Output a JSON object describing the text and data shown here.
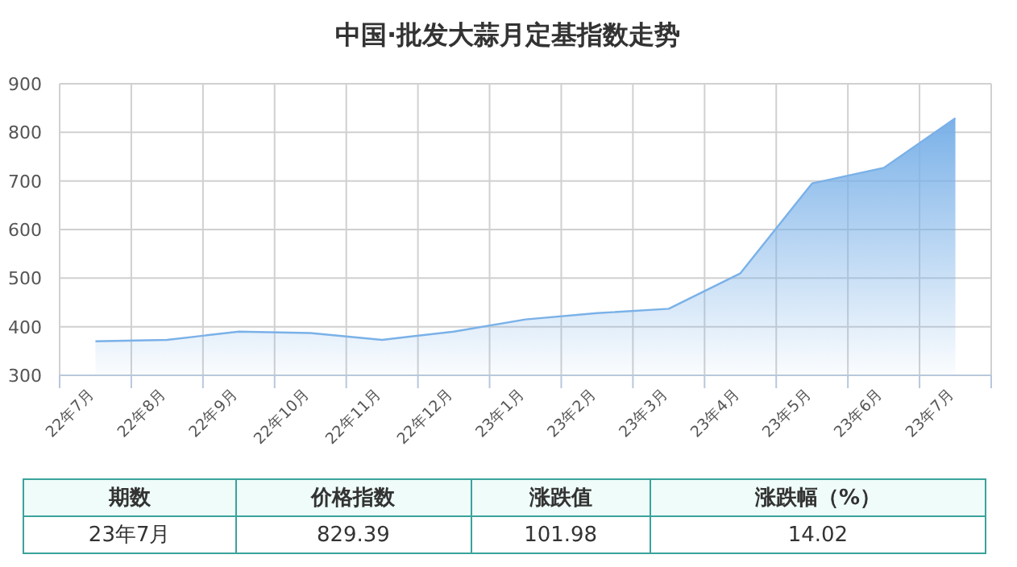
{
  "chart_data": [
    {
      "type": "area",
      "title": "中国·批发大蒜月定基指数走势",
      "categories": [
        "22年7月",
        "22年8月",
        "22年9月",
        "22年10月",
        "22年11月",
        "22年12月",
        "23年1月",
        "23年2月",
        "23年3月",
        "23年4月",
        "23年5月",
        "23年6月",
        "23年7月"
      ],
      "series": [
        {
          "color": "#7ab1e8",
          "values": [
            370,
            373,
            390,
            387,
            373,
            390,
            415,
            428,
            437,
            510,
            695,
            727,
            829
          ]
        }
      ],
      "ylim": [
        300,
        900
      ],
      "yticks": [
        300,
        400,
        500,
        600,
        700,
        800,
        900
      ],
      "grid": true
    },
    {
      "type": "other",
      "categories": [
        "期数",
        "价格指数",
        "涨跌值",
        "涨跌幅（%）"
      ],
      "annotations": [
        "23年7月",
        "829.39",
        "101.98",
        "14.02"
      ]
    }
  ]
}
